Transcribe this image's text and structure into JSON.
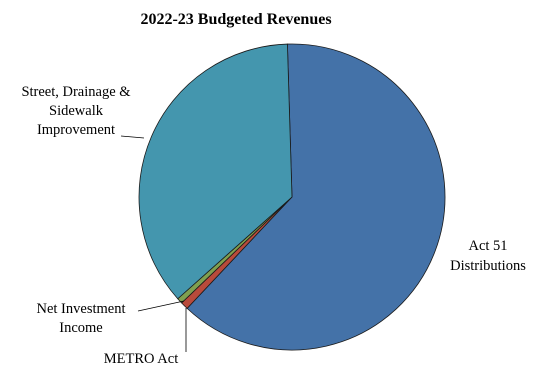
{
  "chart_data": {
    "type": "pie",
    "title": "2022-23 Budgeted Revenues",
    "slices": [
      {
        "label": "Act 51 Distributions",
        "value": 62.5,
        "color": "#4472a8"
      },
      {
        "label": "METRO Act",
        "value": 0.8,
        "color": "#b84a3b"
      },
      {
        "label": "Net Investment Income",
        "value": 0.6,
        "color": "#7fa050"
      },
      {
        "label": "Street, Drainage & Sidewalk Improvement",
        "value": 36.1,
        "color": "#4496ae"
      }
    ],
    "labels": {
      "act51": [
        "Act 51",
        "Distributions"
      ],
      "metro": [
        "METRO Act"
      ],
      "investment": [
        "Net Investment",
        "Income"
      ],
      "street": [
        "Street, Drainage &",
        "Sidewalk",
        "Improvement"
      ]
    }
  }
}
